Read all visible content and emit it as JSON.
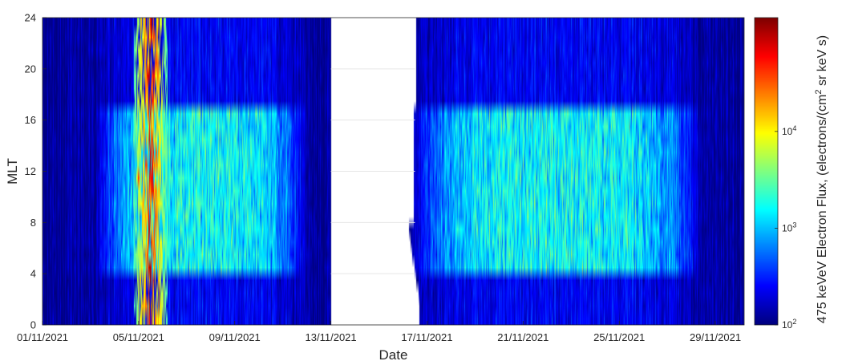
{
  "chart_data": {
    "type": "heatmap",
    "title": "",
    "xlabel": "Date",
    "ylabel": "MLT",
    "x_tick_labels": [
      "01/11/2021",
      "05/11/2021",
      "09/11/2021",
      "13/11/2021",
      "17/11/2021",
      "21/11/2021",
      "25/11/2021",
      "29/11/2021"
    ],
    "x_tick_days": [
      1,
      5,
      9,
      13,
      17,
      21,
      25,
      29
    ],
    "xlim_days": [
      1,
      30.2
    ],
    "y_ticks": [
      0,
      4,
      8,
      12,
      16,
      20,
      24
    ],
    "ylim": [
      0,
      24
    ],
    "mlt_bin_hours": 1,
    "data_gap_days": [
      13.0,
      16.0
    ],
    "colorbar": {
      "label": "475 keVeV Electron Flux, (electrons/(cm² sr keV s)",
      "label_parts": {
        "main": "475 keVeV Electron Flux, (electrons/(cm",
        "sup": "2",
        "tail": " sr keV s)"
      },
      "scale": "log",
      "range": [
        100,
        150000
      ],
      "ticks": [
        {
          "base": "10",
          "exp": "2",
          "value": 100
        },
        {
          "base": "10",
          "exp": "3",
          "value": 1000
        },
        {
          "base": "10",
          "exp": "4",
          "value": 10000
        }
      ],
      "colormap": "jet"
    },
    "flux_features": {
      "background_log10": 2.1,
      "dayside_enhancement_mlt": [
        4,
        17
      ],
      "bright_bands": [
        {
          "date_range_days": [
            3.2,
            12.0
          ],
          "peak_log10": 3.2
        },
        {
          "date_range_days": [
            16.3,
            28.5
          ],
          "peak_log10": 3.2
        }
      ],
      "strong_event": {
        "date_range_days": [
          4.8,
          6.2
        ],
        "peak_log10": 4.9,
        "peak_date_day": 5.0,
        "peak_mlt": 11.5
      }
    },
    "grid": false
  }
}
